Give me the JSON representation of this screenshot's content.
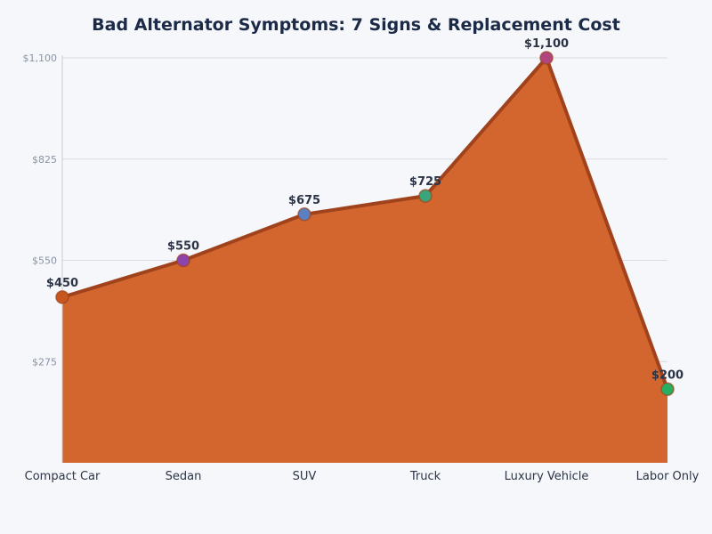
{
  "chart_data": {
    "type": "area",
    "title": "Bad Alternator Symptoms: 7 Signs & Replacement Cost",
    "xlabel": "",
    "ylabel": "",
    "categories": [
      "Compact Car",
      "Sedan",
      "SUV",
      "Truck",
      "Luxury Vehicle",
      "Labor Only"
    ],
    "values": [
      450,
      550,
      675,
      725,
      1100,
      200
    ],
    "data_labels": [
      "$450",
      "$550",
      "$675",
      "$725",
      "$1,100",
      "$200"
    ],
    "ylim": [
      0,
      1100
    ],
    "yticks": [
      275,
      550,
      825,
      1100
    ],
    "ytick_labels": [
      "$275",
      "$550",
      "$825",
      "$1,100"
    ],
    "grid": true,
    "colors": {
      "fill": "#d2662e",
      "line": "#a0431c",
      "points": [
        "#c8561f",
        "#8e44ad",
        "#5b7fbf",
        "#3aa57a",
        "#b0457f",
        "#27ae60"
      ]
    }
  }
}
